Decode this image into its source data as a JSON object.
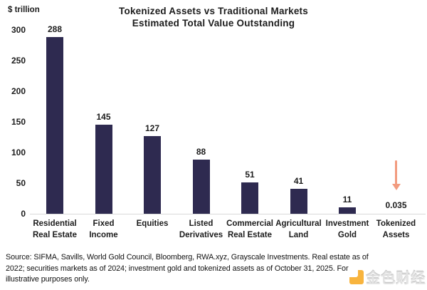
{
  "header": {
    "title_line1": "Tokenized Assets vs Traditional Markets",
    "title_line2": "Estimated Total Value Outstanding",
    "y_axis_unit": "$ trillion"
  },
  "chart_data": {
    "type": "bar",
    "categories": [
      "Residential\nReal Estate",
      "Fixed\nIncome",
      "Equities",
      "Listed\nDerivatives",
      "Commercial\nReal Estate",
      "Agricultural\nLand",
      "Investment\nGold",
      "Tokenized\nAssets"
    ],
    "values": [
      288,
      145,
      127,
      88,
      51,
      41,
      11,
      0.035
    ],
    "value_labels": [
      "288",
      "145",
      "127",
      "88",
      "51",
      "41",
      "11",
      "0.035"
    ],
    "title": "Tokenized Assets vs Traditional Markets Estimated Total Value Outstanding",
    "xlabel": "",
    "ylabel": "$ trillion",
    "ylim": [
      0,
      300
    ],
    "yticks": [
      0,
      50,
      100,
      150,
      200,
      250,
      300
    ],
    "grid": false,
    "legend": null,
    "bar_color": "#2e2a50",
    "annotation": {
      "type": "down-arrow",
      "category_index": 7,
      "color": "#f29b7f"
    }
  },
  "footer": {
    "source_lines": [
      "Source: SIFMA, Savills, World Gold Council, Bloomberg, RWA.xyz, Grayscale Investments. Real estate as of",
      "2022; securities markets as of 2024; investment gold and tokenized assets as of October 31, 2025. For",
      "illustrative purposes only."
    ]
  },
  "watermark": {
    "text": "金色财经",
    "logo_color": "#f7a81d"
  }
}
